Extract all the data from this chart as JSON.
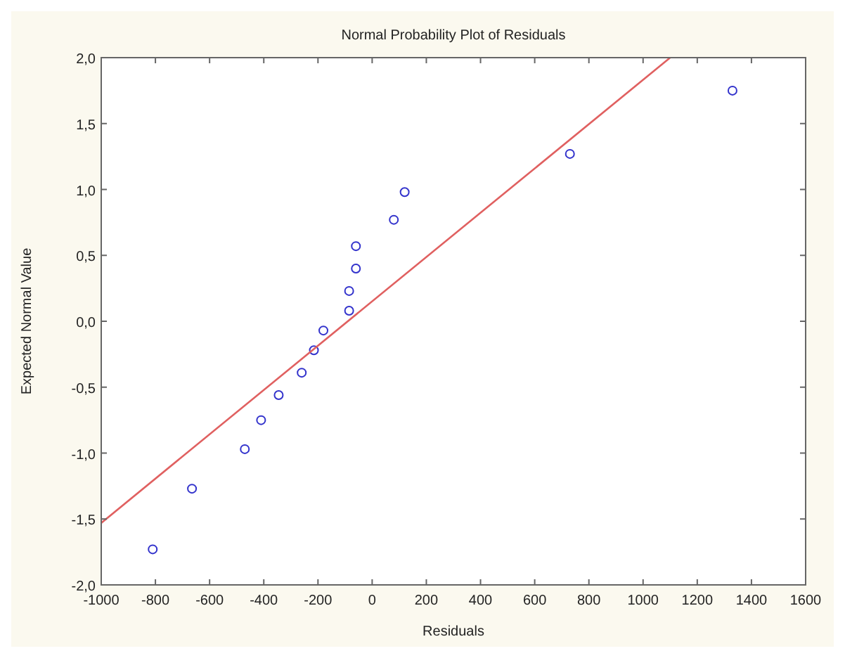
{
  "chart_data": {
    "type": "scatter",
    "title": "Normal Probability Plot of Residuals",
    "xlabel": "Residuals",
    "ylabel": "Expected Normal Value",
    "grid": false,
    "xlim": [
      -1000,
      1600
    ],
    "xticks": [
      -1000,
      -800,
      -600,
      -400,
      -200,
      0,
      200,
      400,
      600,
      800,
      1000,
      1200,
      1400,
      1600
    ],
    "ylim": [
      -2,
      2
    ],
    "yticks": [
      {
        "value": -2,
        "label": "-2,0"
      },
      {
        "value": -1.5,
        "label": "-1,5"
      },
      {
        "value": -1,
        "label": "-1,0"
      },
      {
        "value": -0.5,
        "label": "-0,5"
      },
      {
        "value": 0,
        "label": "0,0"
      },
      {
        "value": 0.5,
        "label": "0,5"
      },
      {
        "value": 1,
        "label": "1,0"
      },
      {
        "value": 1.5,
        "label": "1,5"
      },
      {
        "value": 2,
        "label": "2,0"
      }
    ],
    "series": [
      {
        "marker": "circle",
        "color": "#3333cc",
        "x": [
          -810,
          -665,
          -470,
          -410,
          -345,
          -260,
          -215,
          -180,
          -85,
          -85,
          -60,
          -60,
          80,
          120,
          730,
          1330
        ],
        "values": [
          -1.73,
          -1.27,
          -0.97,
          -0.75,
          -0.56,
          -0.39,
          -0.22,
          -0.07,
          0.08,
          0.23,
          0.4,
          0.57,
          0.77,
          0.98,
          1.27,
          1.75
        ]
      },
      {
        "type": "line",
        "color": "#e06060",
        "x": [
          -1000,
          1100
        ],
        "values": [
          -1.53,
          2.0
        ]
      }
    ]
  }
}
